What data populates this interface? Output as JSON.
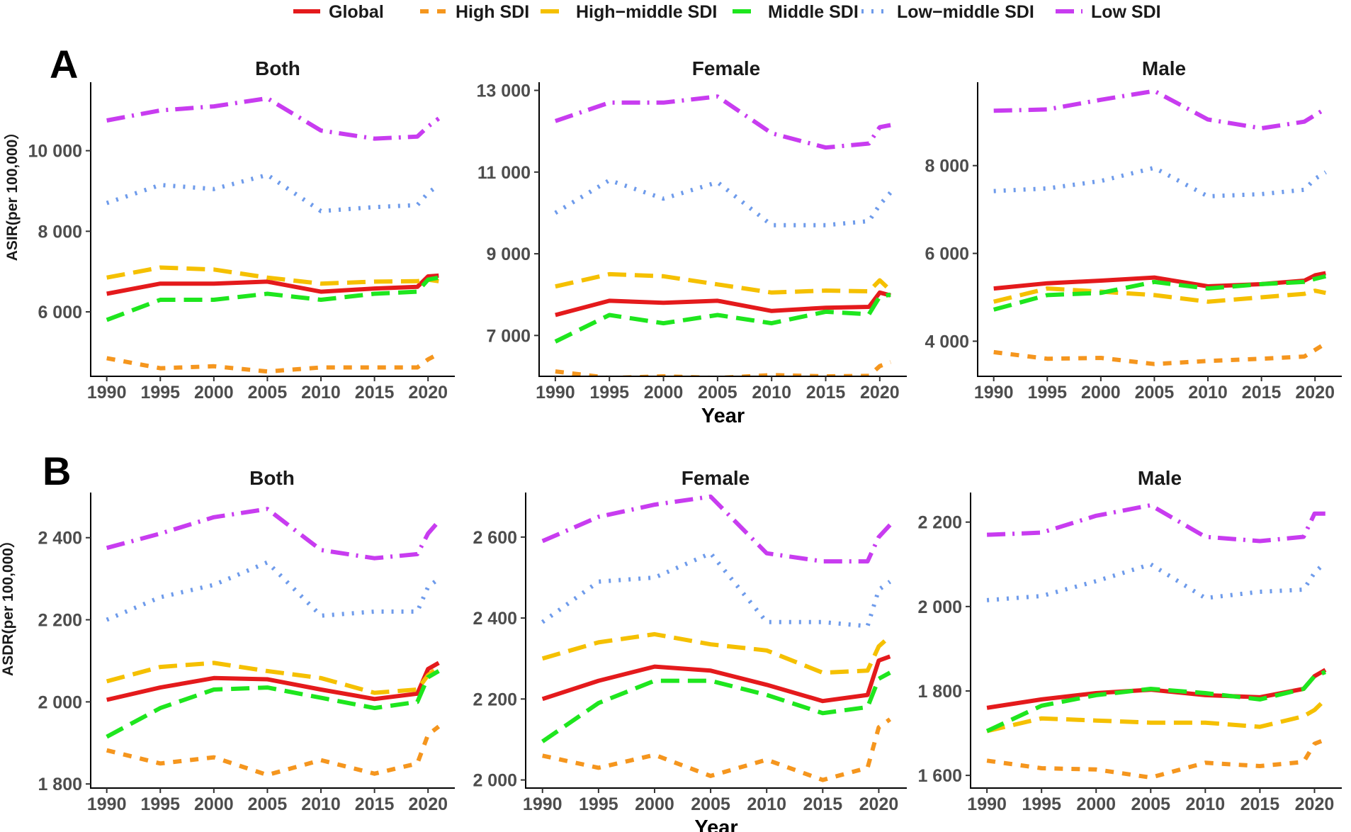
{
  "legend": {
    "items": [
      {
        "name": "Global",
        "color": "#E41A1C",
        "dash": "solid"
      },
      {
        "name": "High SDI",
        "color": "#F5961E",
        "dash": "dashed"
      },
      {
        "name": "High−middle SDI",
        "color": "#F5C000",
        "dash": "longdash"
      },
      {
        "name": "Middle SDI",
        "color": "#1EE61E",
        "dash": "longdash"
      },
      {
        "name": "Low−middle SDI",
        "color": "#6E9BEB",
        "dash": "dotted"
      },
      {
        "name": "Low SDI",
        "color": "#C83CF0",
        "dash": "dotdash"
      }
    ]
  },
  "panels": [
    {
      "letter": "A",
      "ylabel": "ASIR(per 100,000）",
      "xlabel": "Year"
    },
    {
      "letter": "B",
      "ylabel": "ASDR(per 100,000）",
      "xlabel": "Year"
    }
  ],
  "chart_data": [
    {
      "type": "line",
      "panel": "A",
      "title": "Both",
      "xlabel": "",
      "ylabel": "ASIR(per 100,000）",
      "x": [
        1990,
        1995,
        2000,
        2005,
        2010,
        2015,
        2019,
        2020,
        2021
      ],
      "xticks": [
        "1990",
        "1995",
        "2000",
        "2005",
        "2010",
        "2015",
        "2020"
      ],
      "ylim": [
        4400,
        11700
      ],
      "yticks": [
        6000,
        8000,
        10000
      ],
      "ytick_labels": [
        "6 000",
        "8 000",
        "10 000"
      ],
      "series": [
        {
          "name": "Global",
          "values": [
            6450,
            6700,
            6700,
            6750,
            6500,
            6580,
            6620,
            6880,
            6900
          ]
        },
        {
          "name": "High SDI",
          "values": [
            4850,
            4600,
            4650,
            4520,
            4620,
            4620,
            4620,
            4820,
            4960
          ]
        },
        {
          "name": "High−middle SDI",
          "values": [
            6850,
            7100,
            7050,
            6850,
            6700,
            6750,
            6760,
            6800,
            6760
          ]
        },
        {
          "name": "Middle SDI",
          "values": [
            5800,
            6300,
            6300,
            6450,
            6300,
            6450,
            6500,
            6800,
            6850
          ]
        },
        {
          "name": "Low−middle SDI",
          "values": [
            8700,
            9150,
            9050,
            9400,
            8500,
            8600,
            8650,
            8950,
            9150
          ]
        },
        {
          "name": "Low SDI",
          "values": [
            10750,
            11000,
            11100,
            11300,
            10500,
            10300,
            10350,
            10600,
            10800
          ]
        }
      ]
    },
    {
      "type": "line",
      "panel": "A",
      "title": "Female",
      "xlabel": "Year",
      "ylabel": "",
      "x": [
        1990,
        1995,
        2000,
        2005,
        2010,
        2015,
        2019,
        2020,
        2021
      ],
      "xticks": [
        "1990",
        "1995",
        "2000",
        "2005",
        "2010",
        "2015",
        "2020"
      ],
      "ylim": [
        6000,
        13200
      ],
      "yticks": [
        7000,
        9000,
        11000,
        13000
      ],
      "ytick_labels": [
        "7 000",
        "9 000",
        "11 000",
        "13 000"
      ],
      "series": [
        {
          "name": "Global",
          "values": [
            7500,
            7850,
            7800,
            7850,
            7600,
            7680,
            7700,
            8050,
            7980
          ]
        },
        {
          "name": "High SDI",
          "values": [
            6120,
            5960,
            6000,
            5960,
            6030,
            6000,
            6010,
            6250,
            6350
          ]
        },
        {
          "name": "High−middle SDI",
          "values": [
            8200,
            8500,
            8450,
            8250,
            8050,
            8100,
            8080,
            8350,
            8100
          ]
        },
        {
          "name": "Middle SDI",
          "values": [
            6850,
            7500,
            7300,
            7500,
            7300,
            7580,
            7520,
            7950,
            8000
          ]
        },
        {
          "name": "Low−middle SDI",
          "values": [
            10000,
            10800,
            10350,
            10750,
            9700,
            9700,
            9800,
            10200,
            10500
          ]
        },
        {
          "name": "Low SDI",
          "values": [
            12250,
            12700,
            12700,
            12850,
            11950,
            11600,
            11700,
            12100,
            12150
          ]
        }
      ]
    },
    {
      "type": "line",
      "panel": "A",
      "title": "Male",
      "xlabel": "",
      "ylabel": "",
      "x": [
        1990,
        1995,
        2000,
        2005,
        2010,
        2015,
        2019,
        2020,
        2021
      ],
      "xticks": [
        "1990",
        "1995",
        "2000",
        "2005",
        "2010",
        "2015",
        "2020"
      ],
      "ylim": [
        3200,
        9900
      ],
      "yticks": [
        4000,
        6000,
        8000
      ],
      "ytick_labels": [
        "4 000",
        "6 000",
        "8 000"
      ],
      "series": [
        {
          "name": "Global",
          "values": [
            5200,
            5320,
            5380,
            5450,
            5250,
            5300,
            5380,
            5500,
            5550
          ]
        },
        {
          "name": "High SDI",
          "values": [
            3750,
            3600,
            3620,
            3480,
            3550,
            3600,
            3650,
            3800,
            3950
          ]
        },
        {
          "name": "High−middle SDI",
          "values": [
            4900,
            5200,
            5130,
            5050,
            4900,
            5000,
            5080,
            5150,
            5100
          ]
        },
        {
          "name": "Middle SDI",
          "values": [
            4720,
            5050,
            5100,
            5350,
            5200,
            5300,
            5350,
            5420,
            5480
          ]
        },
        {
          "name": "Low−middle SDI",
          "values": [
            7420,
            7480,
            7650,
            7950,
            7300,
            7350,
            7450,
            7700,
            7850
          ]
        },
        {
          "name": "Low SDI",
          "values": [
            9250,
            9280,
            9500,
            9700,
            9050,
            8850,
            9000,
            9150,
            9300
          ]
        }
      ]
    },
    {
      "type": "line",
      "panel": "B",
      "title": "Both",
      "xlabel": "",
      "ylabel": "ASDR(per 100,000）",
      "x": [
        1990,
        1995,
        2000,
        2005,
        2010,
        2015,
        2019,
        2020,
        2021
      ],
      "xticks": [
        "1990",
        "1995",
        "2000",
        "2005",
        "2010",
        "2015",
        "2020"
      ],
      "ylim": [
        1790,
        2510
      ],
      "yticks": [
        1800,
        2000,
        2200,
        2400
      ],
      "ytick_labels": [
        "1 800",
        "2 000",
        "2 200",
        "2 400"
      ],
      "series": [
        {
          "name": "Global",
          "values": [
            2005,
            2035,
            2058,
            2055,
            2030,
            2007,
            2020,
            2080,
            2095
          ]
        },
        {
          "name": "High SDI",
          "values": [
            1882,
            1850,
            1865,
            1822,
            1858,
            1825,
            1850,
            1920,
            1940
          ]
        },
        {
          "name": "High−middle SDI",
          "values": [
            2050,
            2085,
            2095,
            2075,
            2058,
            2022,
            2030,
            2065,
            2085
          ]
        },
        {
          "name": "Middle SDI",
          "values": [
            1915,
            1985,
            2030,
            2035,
            2010,
            1985,
            2000,
            2060,
            2075
          ]
        },
        {
          "name": "Low−middle SDI",
          "values": [
            2200,
            2255,
            2285,
            2340,
            2210,
            2220,
            2220,
            2280,
            2300
          ]
        },
        {
          "name": "Low SDI",
          "values": [
            2375,
            2410,
            2450,
            2470,
            2370,
            2350,
            2360,
            2410,
            2440
          ]
        }
      ]
    },
    {
      "type": "line",
      "panel": "B",
      "title": "Female",
      "xlabel": "Year",
      "ylabel": "",
      "x": [
        1990,
        1995,
        2000,
        2005,
        2010,
        2015,
        2019,
        2020,
        2021
      ],
      "xticks": [
        "1990",
        "1995",
        "2000",
        "2005",
        "2010",
        "2015",
        "2020"
      ],
      "ylim": [
        1980,
        2710
      ],
      "yticks": [
        2000,
        2200,
        2400,
        2600
      ],
      "ytick_labels": [
        "2 000",
        "2 200",
        "2 400",
        "2 600"
      ],
      "series": [
        {
          "name": "Global",
          "values": [
            2200,
            2245,
            2280,
            2270,
            2235,
            2195,
            2210,
            2295,
            2305
          ]
        },
        {
          "name": "High SDI",
          "values": [
            2060,
            2030,
            2062,
            2010,
            2050,
            2000,
            2030,
            2130,
            2150
          ]
        },
        {
          "name": "High−middle SDI",
          "values": [
            2300,
            2340,
            2360,
            2335,
            2320,
            2265,
            2270,
            2330,
            2355
          ]
        },
        {
          "name": "Middle SDI",
          "values": [
            2095,
            2190,
            2245,
            2245,
            2210,
            2165,
            2180,
            2250,
            2265
          ]
        },
        {
          "name": "Low−middle SDI",
          "values": [
            2390,
            2490,
            2500,
            2560,
            2390,
            2390,
            2380,
            2470,
            2490
          ]
        },
        {
          "name": "Low SDI",
          "values": [
            2590,
            2650,
            2680,
            2700,
            2560,
            2540,
            2540,
            2600,
            2630
          ]
        }
      ]
    },
    {
      "type": "line",
      "panel": "B",
      "title": "Male",
      "xlabel": "",
      "ylabel": "",
      "x": [
        1990,
        1995,
        2000,
        2005,
        2010,
        2015,
        2019,
        2020,
        2021
      ],
      "xticks": [
        "1990",
        "1995",
        "2000",
        "2005",
        "2010",
        "2015",
        "2020"
      ],
      "ylim": [
        1570,
        2270
      ],
      "yticks": [
        1600,
        1800,
        2000,
        2200
      ],
      "ytick_labels": [
        "1 600",
        "1 800",
        "2 000",
        "2 200"
      ],
      "series": [
        {
          "name": "Global",
          "values": [
            1760,
            1780,
            1795,
            1803,
            1790,
            1785,
            1805,
            1835,
            1850
          ]
        },
        {
          "name": "High SDI",
          "values": [
            1635,
            1617,
            1614,
            1595,
            1630,
            1622,
            1632,
            1675,
            1685
          ]
        },
        {
          "name": "High−middle SDI",
          "values": [
            1705,
            1735,
            1730,
            1725,
            1725,
            1715,
            1740,
            1755,
            1780
          ]
        },
        {
          "name": "Middle SDI",
          "values": [
            1705,
            1765,
            1790,
            1805,
            1795,
            1780,
            1805,
            1835,
            1845
          ]
        },
        {
          "name": "Low−middle SDI",
          "values": [
            2015,
            2025,
            2060,
            2100,
            2020,
            2035,
            2040,
            2080,
            2105
          ]
        },
        {
          "name": "Low SDI",
          "values": [
            2170,
            2175,
            2215,
            2240,
            2165,
            2155,
            2165,
            2220,
            2220
          ]
        }
      ]
    }
  ]
}
